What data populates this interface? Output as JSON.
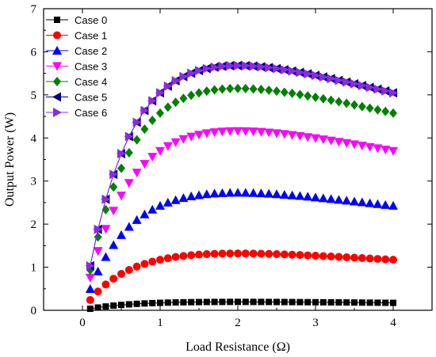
{
  "chart_data": {
    "type": "scatter",
    "title": "",
    "xlabel": "Load Resistance (Ω)",
    "ylabel": "Output Power (W)",
    "xlim": [
      -0.5,
      4.5
    ],
    "ylim": [
      0,
      7
    ],
    "xticks": [
      "0",
      "1",
      "2",
      "3",
      "4"
    ],
    "yticks": [
      "0",
      "1",
      "2",
      "3",
      "4",
      "5",
      "6",
      "7"
    ],
    "grid": false,
    "legend_position": "top-left",
    "x": [
      0.1,
      0.2,
      0.3,
      0.4,
      0.5,
      0.6,
      0.7,
      0.8,
      0.9,
      1.0,
      1.1,
      1.2,
      1.3,
      1.4,
      1.5,
      1.6,
      1.7,
      1.8,
      1.9,
      2.0,
      2.1,
      2.2,
      2.3,
      2.4,
      2.5,
      2.6,
      2.7,
      2.8,
      2.9,
      3.0,
      3.1,
      3.2,
      3.3,
      3.4,
      3.5,
      3.6,
      3.7,
      3.8,
      3.9,
      4.0
    ],
    "series": [
      {
        "name": "Case 0",
        "marker": "square",
        "color": "#000000",
        "line": true,
        "peak": 0.195,
        "pr": 2.0,
        "end": 0.16
      },
      {
        "name": "Case 1",
        "marker": "circle",
        "color": "#ff0000",
        "line": false,
        "peak": 1.32,
        "pr": 2.0,
        "end": 1.16
      },
      {
        "name": "Case 2",
        "marker": "triangle-up",
        "color": "#0000ff",
        "line": false,
        "peak": 2.73,
        "pr": 2.0,
        "end": 2.4
      },
      {
        "name": "Case 3",
        "marker": "triangle-down",
        "color": "#ff00ff",
        "line": false,
        "peak": 4.16,
        "pr": 2.0,
        "end": 3.7
      },
      {
        "name": "Case 4",
        "marker": "diamond",
        "color": "#008000",
        "line": false,
        "peak": 5.15,
        "pr": 2.0,
        "end": 4.56
      },
      {
        "name": "Case 5",
        "marker": "triangle-left",
        "color": "#000080",
        "line": true,
        "peak": 5.68,
        "pr": 2.0,
        "end": 5.04
      },
      {
        "name": "Case 6",
        "marker": "triangle-right",
        "color": "#8a2be2",
        "line": true,
        "peak": 5.68,
        "pr": 2.0,
        "end": 5.06
      }
    ]
  }
}
